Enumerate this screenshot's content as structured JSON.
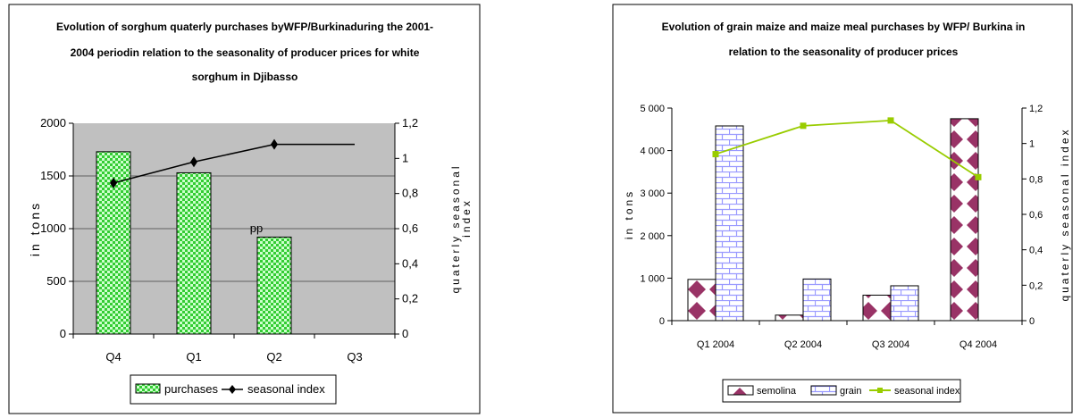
{
  "chart_data": [
    {
      "type": "bar",
      "title_lines": [
        "Evolution of sorghum quaterly purchases byWFP/Burkinaduring the 2001-",
        "2004 periodin relation to the seasonality of producer prices for white",
        "sorghum in Djibasso"
      ],
      "categories": [
        "Q4",
        "Q1",
        "Q2",
        "Q3"
      ],
      "series": [
        {
          "name": "purchases",
          "kind": "bar",
          "axis": "left",
          "values": [
            1730,
            1530,
            920,
            null
          ]
        },
        {
          "name": "seasonal index",
          "kind": "line",
          "axis": "right",
          "values": [
            0.86,
            0.98,
            1.08,
            1.08
          ]
        }
      ],
      "annotation": "pp",
      "ylabel": "in tons",
      "y2label_lines": [
        "quaterly seasonal",
        "index"
      ],
      "ylim": [
        0,
        2000
      ],
      "y2lim": [
        0,
        1.2
      ],
      "yticks": [
        "0",
        "500",
        "1000",
        "1500",
        "2000"
      ],
      "y2ticks": [
        "0",
        "0,2",
        "0,4",
        "0,6",
        "0,8",
        "1",
        "1,2"
      ],
      "legend_position": "bottom",
      "colors": {
        "plot_bg": "#c0c0c0",
        "bar": "#66ff33",
        "line": "#000000"
      }
    },
    {
      "type": "bar",
      "title_lines": [
        "Evolution of grain maize and maize meal purchases by WFP/ Burkina in",
        "relation to the seasonality of producer prices"
      ],
      "categories": [
        "Q1 2004",
        "Q2 2004",
        "Q3 2004",
        "Q4 2004"
      ],
      "series": [
        {
          "name": "semolina",
          "kind": "bar",
          "axis": "left",
          "values": [
            970,
            130,
            600,
            4750
          ]
        },
        {
          "name": "grain",
          "kind": "bar",
          "axis": "left",
          "values": [
            4580,
            980,
            820,
            null
          ]
        },
        {
          "name": "seasonal index",
          "kind": "line",
          "axis": "right",
          "values": [
            0.94,
            1.1,
            1.13,
            0.81
          ]
        }
      ],
      "ylabel": "in tons",
      "y2label": "quaterly seasonal index",
      "ylim": [
        0,
        5000
      ],
      "y2lim": [
        0,
        1.2
      ],
      "yticks": [
        "0",
        "1 000",
        "2 000",
        "3 000",
        "4 000",
        "5 000"
      ],
      "y2ticks": [
        "0",
        "0,2",
        "0,4",
        "0,6",
        "0,8",
        "1",
        "1,2"
      ],
      "legend_position": "bottom",
      "colors": {
        "semolina": "#993366",
        "grain": "#9999ff",
        "line": "#99cc00"
      }
    }
  ]
}
